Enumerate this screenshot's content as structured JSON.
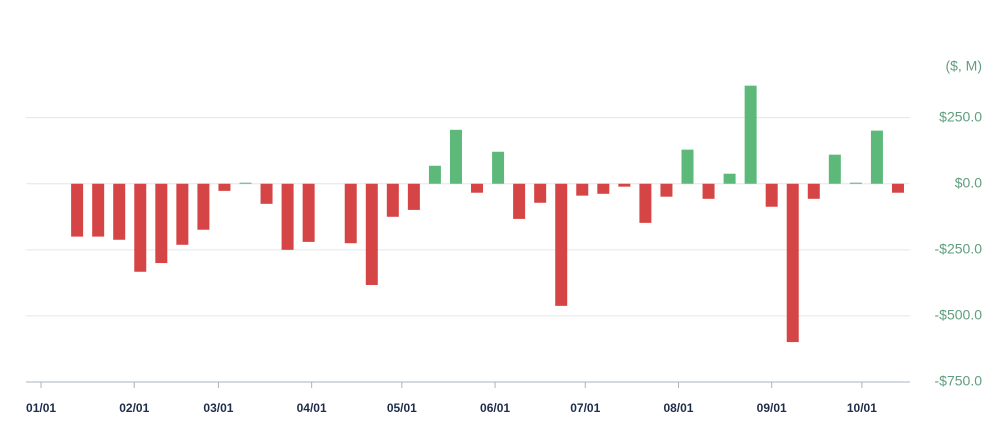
{
  "chart_data": {
    "type": "bar",
    "unit_label": "($, M)",
    "x": [
      12,
      19,
      26,
      33,
      40,
      47,
      54,
      61,
      68,
      75,
      82,
      89,
      96,
      103,
      110,
      117,
      124,
      131,
      138,
      145,
      152,
      159,
      166,
      173,
      180,
      187,
      194,
      201,
      208,
      215,
      222,
      229,
      236,
      243,
      250,
      257,
      264,
      271,
      278,
      285
    ],
    "values": [
      -200,
      -200,
      -212,
      -333,
      -300,
      -231,
      -174,
      -27,
      4,
      -76,
      -250,
      -220,
      0,
      -225,
      -383,
      -125,
      -99,
      68,
      204,
      -34,
      121,
      -133,
      -72,
      -462,
      -45,
      -38,
      -11,
      -148,
      -49,
      129,
      -57,
      38,
      371,
      -87,
      -599,
      -57,
      110,
      4,
      201,
      -34
    ],
    "positive_color": "#5cb97a",
    "negative_color": "#d64545",
    "xlim": [
      -5,
      289
    ],
    "xticks": [
      {
        "value": 0,
        "label": "01/01"
      },
      {
        "value": 31,
        "label": "02/01"
      },
      {
        "value": 59,
        "label": "03/01"
      },
      {
        "value": 90,
        "label": "04/01"
      },
      {
        "value": 120,
        "label": "05/01"
      },
      {
        "value": 151,
        "label": "06/01"
      },
      {
        "value": 181,
        "label": "07/01"
      },
      {
        "value": 212,
        "label": "08/01"
      },
      {
        "value": 243,
        "label": "09/01"
      },
      {
        "value": 273,
        "label": "10/01"
      }
    ],
    "ylim": [
      -750,
      400
    ],
    "yticks": [
      {
        "value": 250,
        "label": "$250.0"
      },
      {
        "value": 0,
        "label": "$0.0"
      },
      {
        "value": -250,
        "label": "-$250.0"
      },
      {
        "value": -500,
        "label": "-$500.0"
      },
      {
        "value": -750,
        "label": "-$750.0"
      }
    ],
    "grid": true
  }
}
